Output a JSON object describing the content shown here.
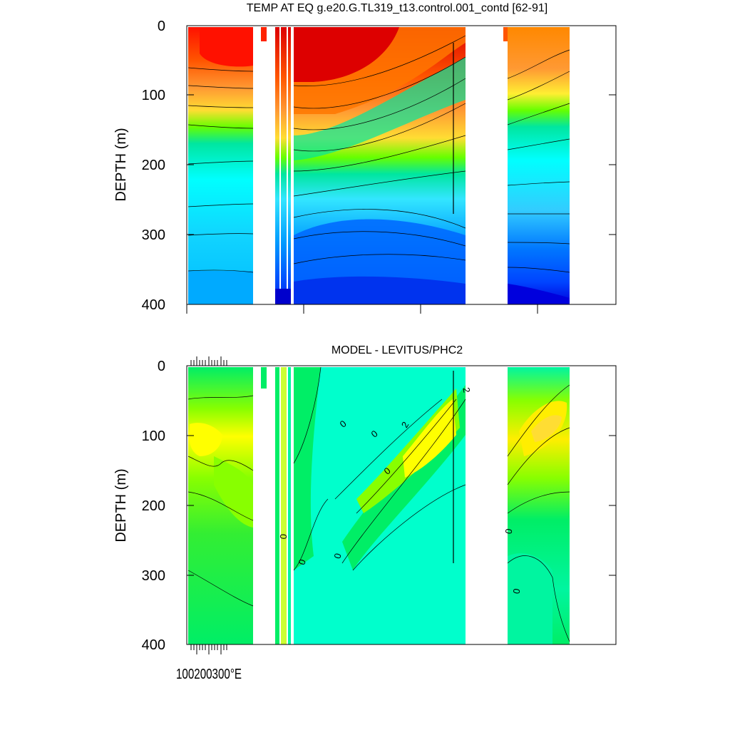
{
  "chart_data": [
    {
      "type": "heatmap",
      "title": "TEMP AT EQ g.e20.G.TL319_t13.control.001_contd [62-91]",
      "ylabel": "DEPTH (m)",
      "y_ticks": [
        "0",
        "100",
        "200",
        "300",
        "400"
      ],
      "ylim": [
        400,
        0
      ],
      "y_inverted": true,
      "colormap": [
        "#0000cc",
        "#0044ff",
        "#0077ff",
        "#0099ff",
        "#00bbff",
        "#11d4ff",
        "#33e6ff",
        "#00ffff",
        "#00f0cc",
        "#00e6a0",
        "#00dd66",
        "#00ee33",
        "#66ff00",
        "#ccff00",
        "#ffff00",
        "#ffdd33",
        "#ffbb33",
        "#ff9933",
        "#ff7700",
        "#ff5500",
        "#ff2200",
        "#e00000"
      ],
      "ocean_segments": [
        {
          "top_color": "#ff1100",
          "bottom_color": "#00ccff"
        },
        {
          "top_color": "#ff2200",
          "bottom_color": "#0000dd"
        },
        {
          "top_color": "#dd0000",
          "bottom_color": "#0033ff"
        },
        {
          "top_color": "#ff8800",
          "bottom_color": "#0022ee"
        }
      ]
    },
    {
      "type": "heatmap",
      "title": "MODEL - LEVITUS/PHC2",
      "ylabel": "DEPTH (m)",
      "y_ticks": [
        "0",
        "100",
        "200",
        "300",
        "400"
      ],
      "ylim": [
        400,
        0
      ],
      "y_inverted": true,
      "x_tick_labels_overlapping": "100200300°E",
      "contour_labels": [
        "0",
        "0",
        "0",
        "2",
        "2",
        "0",
        "0",
        "0",
        "0",
        "0"
      ],
      "colormap": [
        "#00ffcc",
        "#00f5a0",
        "#00ee66",
        "#33ff33",
        "#88ff00",
        "#ccff33",
        "#ffff00",
        "#ffdd33"
      ]
    }
  ]
}
